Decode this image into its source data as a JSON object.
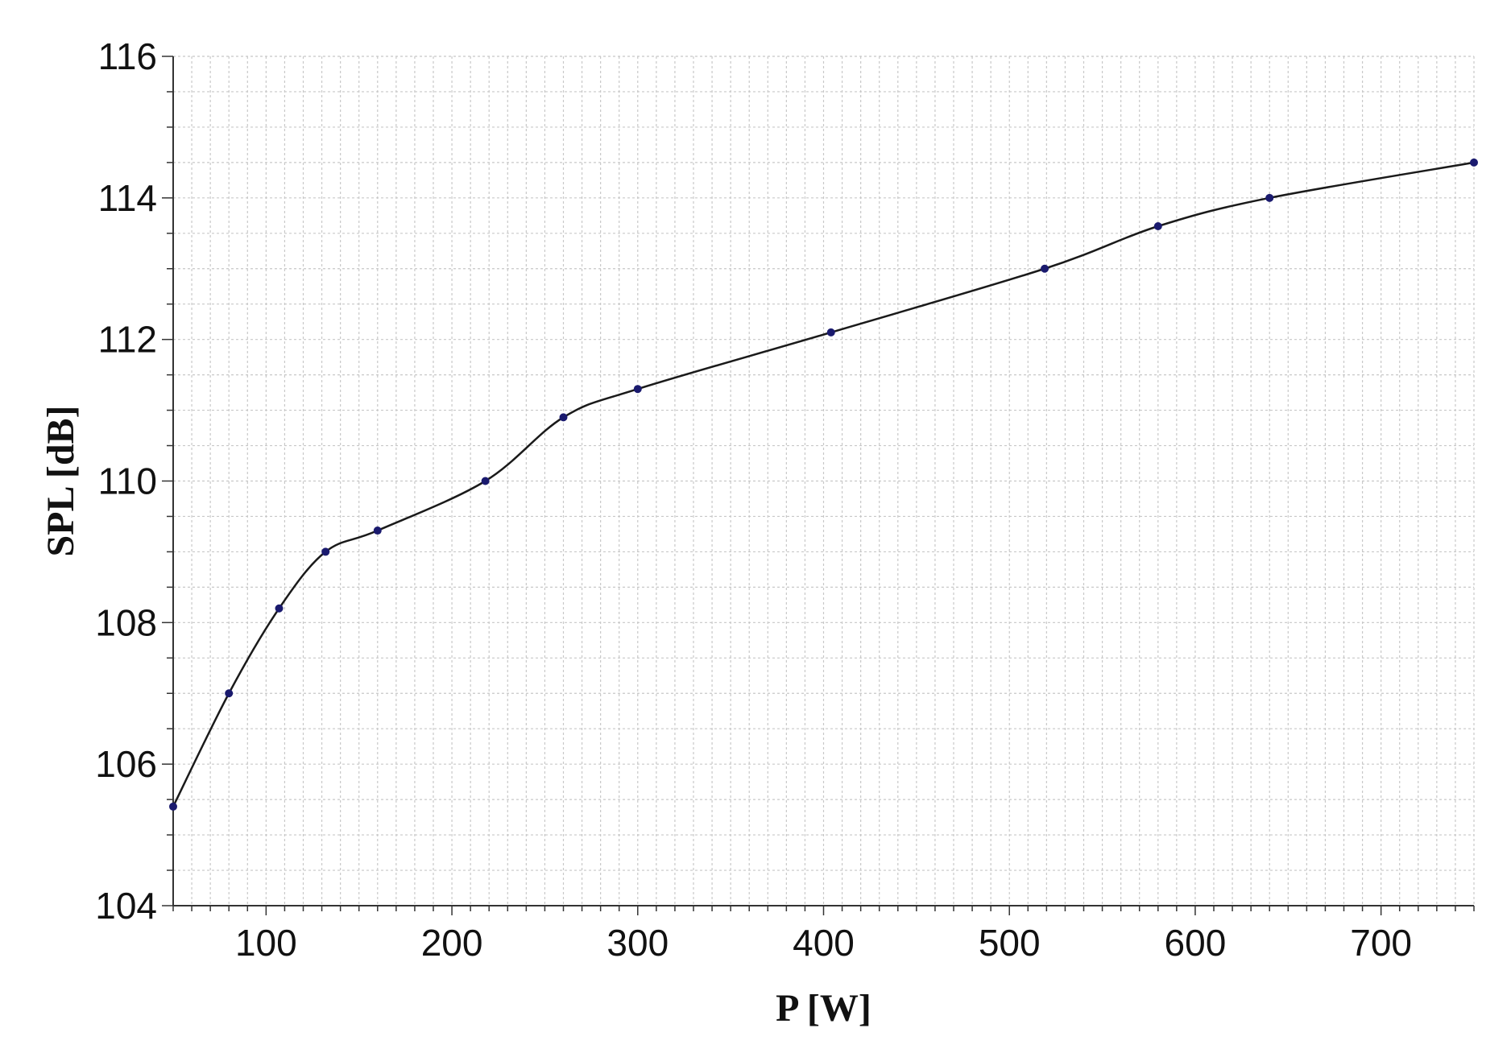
{
  "chart_data": {
    "type": "line",
    "title": "",
    "xlabel": "P [W]",
    "ylabel": "SPL [dB]",
    "xlim": [
      50,
      750
    ],
    "ylim": [
      104,
      116
    ],
    "x_ticks": [
      100,
      200,
      300,
      400,
      500,
      600,
      700
    ],
    "x_tick_labels": [
      "100",
      "200",
      "300",
      "400",
      "500",
      "600",
      "700"
    ],
    "y_ticks": [
      104,
      106,
      108,
      110,
      112,
      114,
      116
    ],
    "y_tick_labels": [
      "104",
      "106",
      "108",
      "110",
      "112",
      "114",
      "116"
    ],
    "x_minor_step": 10,
    "y_minor_step": 0.5,
    "grid": true,
    "legend": "none",
    "series": [
      {
        "x": [
          50,
          80,
          107,
          132,
          160,
          218,
          260,
          300,
          404,
          519,
          580,
          640,
          750
        ],
        "y": [
          105.4,
          107.0,
          108.2,
          109.0,
          109.3,
          110.0,
          110.9,
          111.3,
          112.1,
          113.0,
          113.6,
          114.0,
          114.5
        ]
      }
    ],
    "colors": {
      "line": "#1a1a1a",
      "marker": "#1a1a6e",
      "grid": "#c8c8c8",
      "axis": "#333333"
    }
  }
}
